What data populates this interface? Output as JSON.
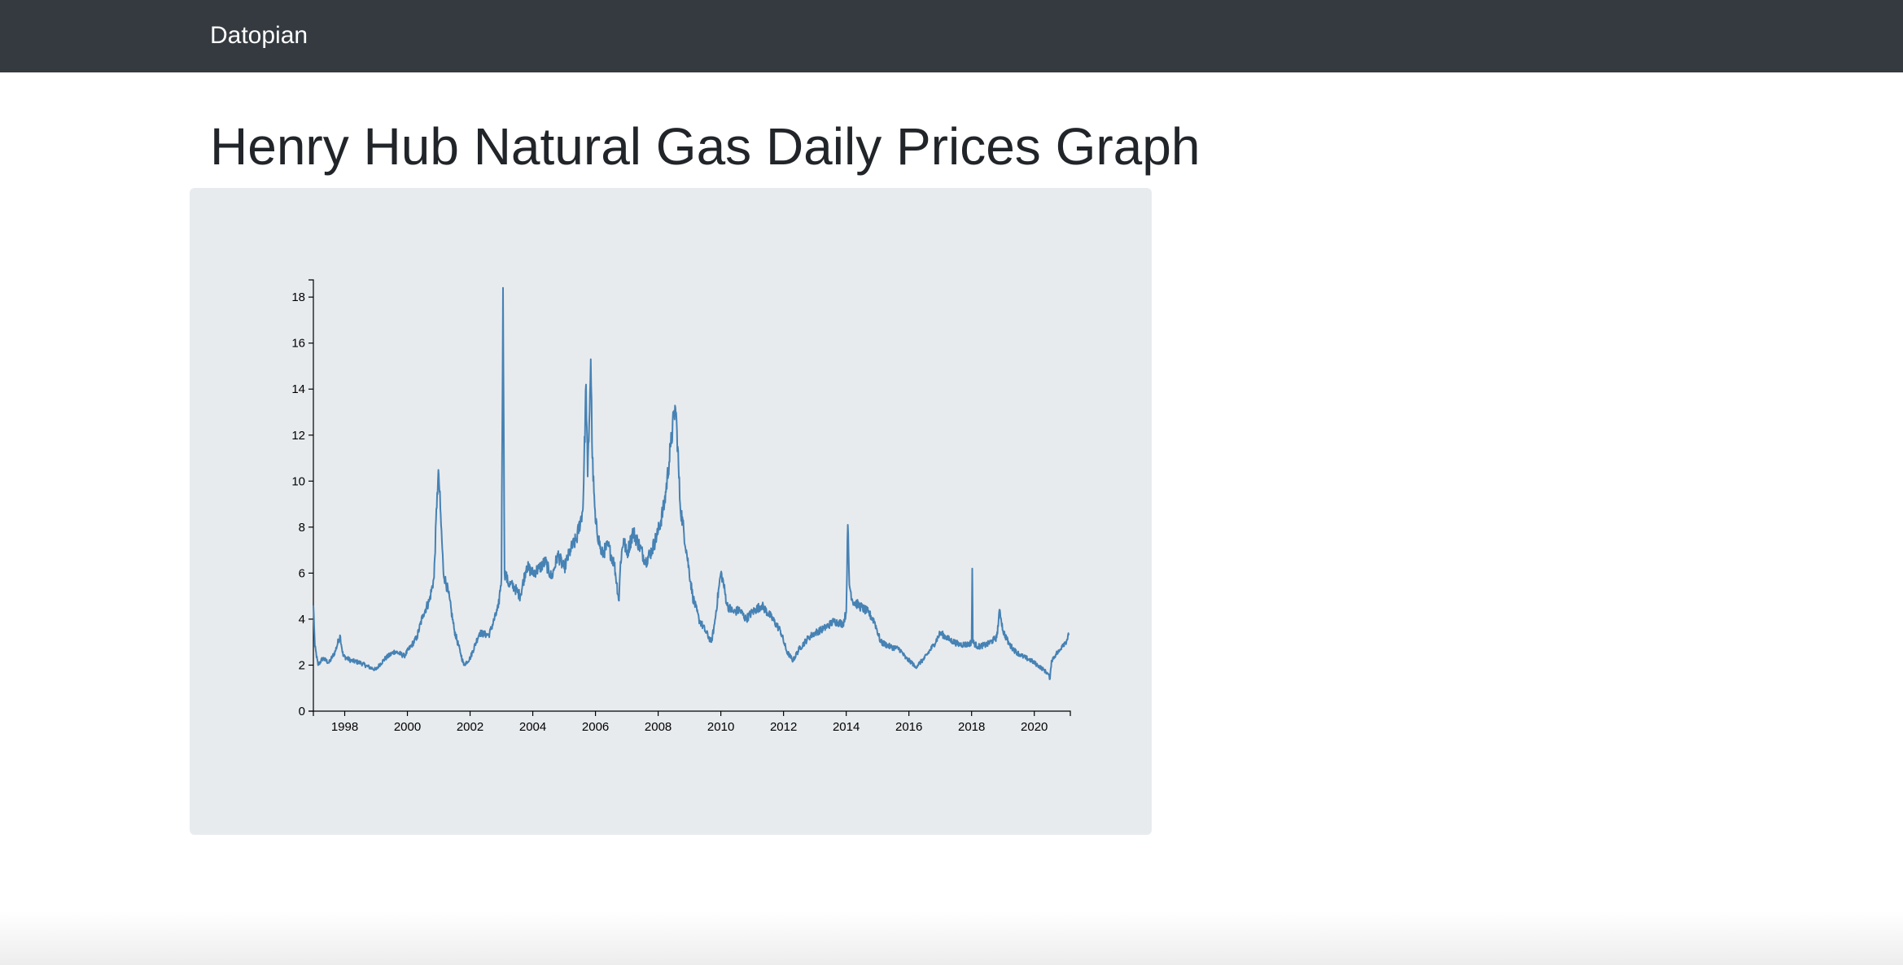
{
  "navbar": {
    "brand": "Datopian"
  },
  "page": {
    "title": "Henry Hub Natural Gas Daily Prices Graph"
  },
  "chart_data": {
    "type": "line",
    "title": "",
    "xlabel": "",
    "ylabel": "",
    "x_ticks": [
      "1998",
      "2000",
      "2002",
      "2004",
      "2006",
      "2008",
      "2010",
      "2012",
      "2014",
      "2016",
      "2018",
      "2020"
    ],
    "y_ticks": [
      0,
      2,
      4,
      6,
      8,
      10,
      12,
      14,
      16,
      18
    ],
    "xlim": [
      1997.0,
      2021.15
    ],
    "ylim": [
      0,
      18.5
    ],
    "grid": false,
    "line_color": "#4682b4",
    "series": [
      {
        "x": [
          1997.0,
          1997.05,
          1997.15,
          1997.3,
          1997.5,
          1997.7,
          1997.85,
          1997.95,
          1998.2,
          1998.5,
          1998.8,
          1999.0,
          1999.1,
          1999.3,
          1999.6,
          1999.9,
          2000.1,
          2000.3,
          2000.5,
          2000.7,
          2000.85,
          2000.95,
          2001.0,
          2001.05,
          2001.15,
          2001.3,
          2001.5,
          2001.7,
          2001.8,
          2002.0,
          2002.3,
          2002.6,
          2002.9,
          2003.0,
          2003.05,
          2003.1,
          2003.15,
          2003.2,
          2003.4,
          2003.6,
          2003.8,
          2004.0,
          2004.2,
          2004.4,
          2004.6,
          2004.8,
          2005.0,
          2005.2,
          2005.4,
          2005.6,
          2005.7,
          2005.75,
          2005.8,
          2005.85,
          2005.9,
          2005.95,
          2006.0,
          2006.2,
          2006.4,
          2006.6,
          2006.75,
          2006.8,
          2006.9,
          2007.0,
          2007.2,
          2007.4,
          2007.6,
          2007.8,
          2008.0,
          2008.2,
          2008.4,
          2008.5,
          2008.55,
          2008.6,
          2008.7,
          2008.9,
          2009.1,
          2009.3,
          2009.5,
          2009.7,
          2009.8,
          2009.95,
          2010.0,
          2010.05,
          2010.2,
          2010.4,
          2010.6,
          2010.8,
          2011.0,
          2011.3,
          2011.6,
          2011.9,
          2012.1,
          2012.3,
          2012.5,
          2012.8,
          2013.0,
          2013.3,
          2013.6,
          2013.9,
          2014.0,
          2014.05,
          2014.1,
          2014.2,
          2014.4,
          2014.7,
          2014.9,
          2015.1,
          2015.4,
          2015.7,
          2015.9,
          2016.1,
          2016.2,
          2016.5,
          2016.8,
          2017.0,
          2017.3,
          2017.6,
          2017.9,
          2018.0,
          2018.02,
          2018.04,
          2018.2,
          2018.5,
          2018.8,
          2018.9,
          2019.0,
          2019.2,
          2019.4,
          2019.6,
          2019.9,
          2020.1,
          2020.3,
          2020.45,
          2020.5,
          2020.55,
          2020.7,
          2020.8,
          2020.9,
          2021.0,
          2021.1
        ],
        "y": [
          4.6,
          2.8,
          2.0,
          2.3,
          2.1,
          2.6,
          3.3,
          2.4,
          2.2,
          2.1,
          1.9,
          1.8,
          2.0,
          2.3,
          2.6,
          2.4,
          2.8,
          3.2,
          4.2,
          4.8,
          5.8,
          9.5,
          10.3,
          8.8,
          6.0,
          5.2,
          3.5,
          2.5,
          2.0,
          2.3,
          3.4,
          3.3,
          4.5,
          5.8,
          18.4,
          6.0,
          5.9,
          5.6,
          5.4,
          5.0,
          6.3,
          6.0,
          6.2,
          6.5,
          5.8,
          6.8,
          6.2,
          7.0,
          7.5,
          8.8,
          14.2,
          10.2,
          12.5,
          15.3,
          11.0,
          9.5,
          8.2,
          6.8,
          7.2,
          6.4,
          4.8,
          6.5,
          7.5,
          6.8,
          7.8,
          7.2,
          6.5,
          7.0,
          7.8,
          9.0,
          11.5,
          12.8,
          13.2,
          12.2,
          9.0,
          7.0,
          5.0,
          4.0,
          3.5,
          3.0,
          3.8,
          5.5,
          6.0,
          5.8,
          4.6,
          4.3,
          4.4,
          4.0,
          4.3,
          4.6,
          4.1,
          3.5,
          2.6,
          2.2,
          2.7,
          3.2,
          3.4,
          3.6,
          3.9,
          3.8,
          4.3,
          8.1,
          5.5,
          4.8,
          4.6,
          4.3,
          3.9,
          3.0,
          2.8,
          2.7,
          2.3,
          2.1,
          1.9,
          2.3,
          2.9,
          3.4,
          3.1,
          2.9,
          2.9,
          3.0,
          6.2,
          3.0,
          2.8,
          2.9,
          3.2,
          4.4,
          3.5,
          2.9,
          2.6,
          2.4,
          2.2,
          2.0,
          1.8,
          1.6,
          1.4,
          2.2,
          2.5,
          2.6,
          2.9,
          3.0,
          3.3
        ]
      }
    ]
  }
}
